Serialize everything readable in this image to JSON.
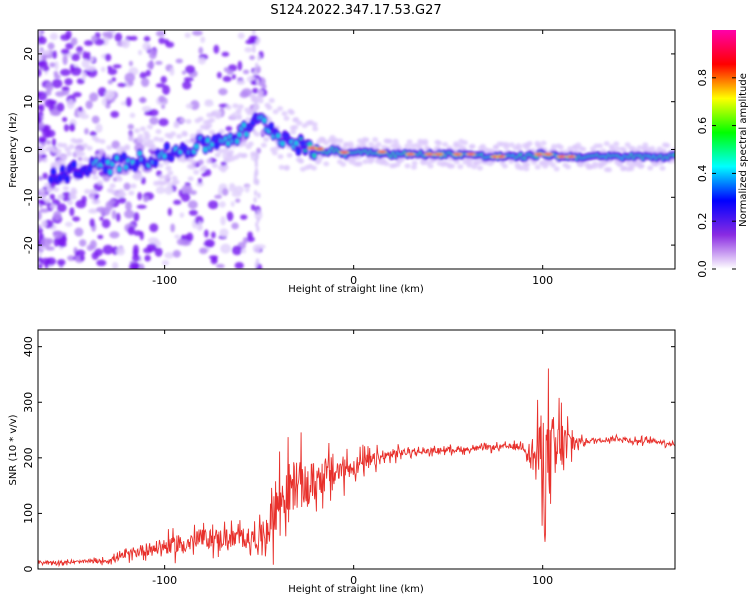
{
  "title": "S124.2022.347.17.53.G27",
  "chart_data": [
    {
      "type": "heatmap",
      "xlabel": "Height of straight line (km)",
      "ylabel": "Frequency (Hz)",
      "xlim": [
        -167,
        170
      ],
      "ylim": [
        -25,
        25
      ],
      "xticks": [
        -100,
        0,
        100
      ],
      "yticks": [
        -20,
        -10,
        0,
        10,
        20
      ],
      "colorbar": {
        "label": "Normalized spectral amplitude",
        "range": [
          0,
          1
        ],
        "ticks": [
          "0.0",
          "0.2",
          "0.4",
          "0.6",
          "0.8"
        ],
        "colormap": [
          "#ffffff",
          "#8a2be2",
          "#0000ff",
          "#00ffff",
          "#00ff00",
          "#ffff00",
          "#ff0000",
          "#ff00aa"
        ]
      },
      "ridge": {
        "x": [
          -170,
          -155,
          -140,
          -125,
          -110,
          -100,
          -90,
          -80,
          -70,
          -60,
          -55,
          -50,
          -45,
          -40,
          -35,
          -30,
          -25,
          -20,
          -15,
          -10,
          -5,
          0,
          10,
          20,
          30,
          40,
          50,
          60,
          70,
          80,
          90,
          100,
          110,
          120,
          130,
          140,
          150,
          160,
          170
        ],
        "y": [
          -6,
          -5,
          -4,
          -3,
          -2,
          -1,
          0,
          1,
          2,
          3,
          5,
          6,
          5,
          3,
          2,
          1,
          0.5,
          0,
          -0.5,
          0,
          -1,
          -0.5,
          -0.5,
          -1,
          -1,
          -1,
          -1,
          -1,
          -1.5,
          -1.5,
          -1.5,
          -1,
          -1.5,
          -1.5,
          -1.5,
          -1.5,
          -1.5,
          -1.5,
          -1.5
        ]
      }
    },
    {
      "type": "line",
      "xlabel": "Height of straight line (km)",
      "ylabel": "SNR (10 * v/v)",
      "xlim": [
        -167,
        170
      ],
      "ylim": [
        0,
        430
      ],
      "xticks": [
        -100,
        0,
        100
      ],
      "yticks": [
        0,
        100,
        200,
        300,
        400
      ],
      "color": "#e8302b",
      "series": [
        {
          "x": [
            -167,
            -150,
            -130,
            -120,
            -110,
            -100,
            -90,
            -80,
            -70,
            -60,
            -50,
            -45,
            -40,
            -35,
            -30,
            -25,
            -20,
            -15,
            -10,
            -5,
            0,
            5,
            10,
            15,
            20,
            25,
            30,
            40,
            50,
            60,
            70,
            80,
            90,
            95,
            100,
            105,
            110,
            120,
            130,
            140,
            150,
            160,
            170
          ],
          "y": [
            12,
            12,
            15,
            25,
            35,
            40,
            45,
            55,
            55,
            55,
            55,
            75,
            120,
            140,
            155,
            145,
            160,
            170,
            175,
            180,
            185,
            190,
            195,
            200,
            205,
            210,
            210,
            212,
            215,
            215,
            218,
            220,
            220,
            200,
            210,
            190,
            225,
            230,
            232,
            235,
            230,
            230,
            225
          ],
          "spread": [
            6,
            6,
            8,
            15,
            25,
            30,
            35,
            35,
            40,
            40,
            40,
            70,
            110,
            110,
            100,
            90,
            80,
            70,
            60,
            50,
            40,
            35,
            30,
            25,
            20,
            15,
            12,
            10,
            10,
            10,
            10,
            10,
            15,
            60,
            150,
            200,
            100,
            12,
            10,
            10,
            10,
            10,
            10
          ]
        }
      ]
    }
  ]
}
